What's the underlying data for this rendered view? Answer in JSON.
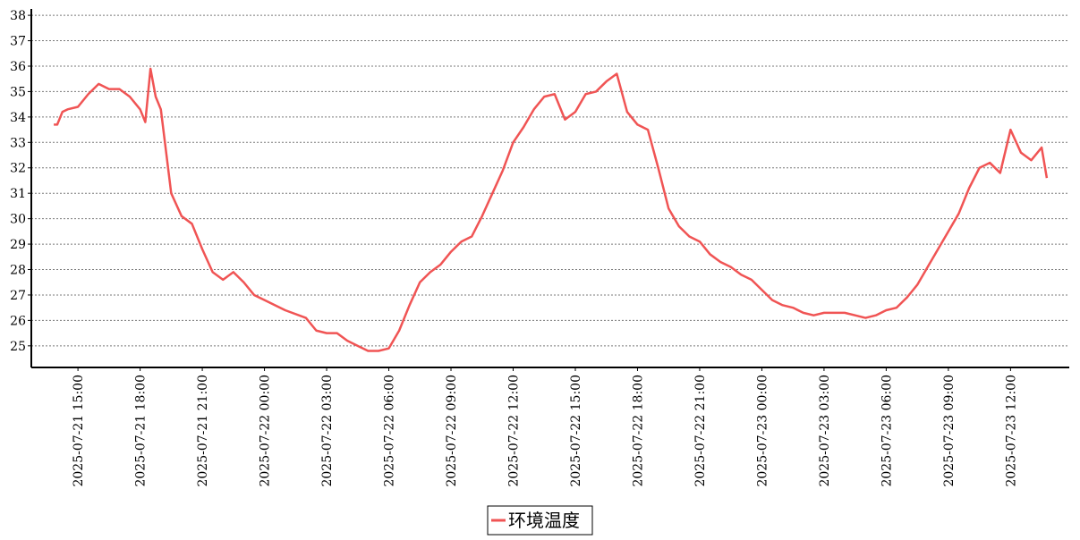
{
  "chart_data": {
    "type": "line",
    "x": [
      "2025-07-21 13:50",
      "2025-07-21 14:00",
      "2025-07-21 14:15",
      "2025-07-21 14:30",
      "2025-07-21 15:00",
      "2025-07-21 15:30",
      "2025-07-21 16:00",
      "2025-07-21 16:30",
      "2025-07-21 17:00",
      "2025-07-21 17:30",
      "2025-07-21 18:00",
      "2025-07-21 18:15",
      "2025-07-21 18:30",
      "2025-07-21 18:45",
      "2025-07-21 19:00",
      "2025-07-21 19:30",
      "2025-07-21 20:00",
      "2025-07-21 20:30",
      "2025-07-21 21:00",
      "2025-07-21 21:30",
      "2025-07-21 22:00",
      "2025-07-21 22:30",
      "2025-07-21 23:00",
      "2025-07-21 23:30",
      "2025-07-22 00:00",
      "2025-07-22 01:00",
      "2025-07-22 02:00",
      "2025-07-22 02:30",
      "2025-07-22 03:00",
      "2025-07-22 03:30",
      "2025-07-22 04:00",
      "2025-07-22 04:30",
      "2025-07-22 05:00",
      "2025-07-22 05:30",
      "2025-07-22 06:00",
      "2025-07-22 06:30",
      "2025-07-22 07:00",
      "2025-07-22 07:30",
      "2025-07-22 08:00",
      "2025-07-22 08:30",
      "2025-07-22 09:00",
      "2025-07-22 09:30",
      "2025-07-22 10:00",
      "2025-07-22 10:30",
      "2025-07-22 11:00",
      "2025-07-22 11:30",
      "2025-07-22 12:00",
      "2025-07-22 12:30",
      "2025-07-22 13:00",
      "2025-07-22 13:30",
      "2025-07-22 14:00",
      "2025-07-22 14:30",
      "2025-07-22 15:00",
      "2025-07-22 15:30",
      "2025-07-22 16:00",
      "2025-07-22 16:30",
      "2025-07-22 17:00",
      "2025-07-22 17:30",
      "2025-07-22 18:00",
      "2025-07-22 18:30",
      "2025-07-22 19:00",
      "2025-07-22 19:30",
      "2025-07-22 20:00",
      "2025-07-22 20:30",
      "2025-07-22 21:00",
      "2025-07-22 21:30",
      "2025-07-22 22:00",
      "2025-07-22 22:30",
      "2025-07-22 23:00",
      "2025-07-22 23:30",
      "2025-07-23 00:00",
      "2025-07-23 00:30",
      "2025-07-23 01:00",
      "2025-07-23 01:30",
      "2025-07-23 02:00",
      "2025-07-23 02:30",
      "2025-07-23 03:00",
      "2025-07-23 04:00",
      "2025-07-23 04:30",
      "2025-07-23 05:00",
      "2025-07-23 05:30",
      "2025-07-23 06:00",
      "2025-07-23 06:30",
      "2025-07-23 07:00",
      "2025-07-23 07:30",
      "2025-07-23 08:00",
      "2025-07-23 08:30",
      "2025-07-23 09:00",
      "2025-07-23 09:30",
      "2025-07-23 10:00",
      "2025-07-23 10:30",
      "2025-07-23 11:00",
      "2025-07-23 11:30",
      "2025-07-23 12:00",
      "2025-07-23 12:30",
      "2025-07-23 13:00",
      "2025-07-23 13:30",
      "2025-07-23 13:45"
    ],
    "series": [
      {
        "name": "环境温度",
        "color": "#f05454",
        "values": [
          33.7,
          33.7,
          34.2,
          34.3,
          34.4,
          34.9,
          35.3,
          35.1,
          35.1,
          34.8,
          34.3,
          33.8,
          35.9,
          34.8,
          34.3,
          31.0,
          30.1,
          29.8,
          28.8,
          27.9,
          27.6,
          27.9,
          27.5,
          27.0,
          26.8,
          26.4,
          26.1,
          25.6,
          25.5,
          25.5,
          25.2,
          25.0,
          24.8,
          24.8,
          24.9,
          25.6,
          26.6,
          27.5,
          27.9,
          28.2,
          28.7,
          29.1,
          29.3,
          30.1,
          31.0,
          31.9,
          33.0,
          33.6,
          34.3,
          34.8,
          34.9,
          33.9,
          34.2,
          34.9,
          35.0,
          35.4,
          35.7,
          34.2,
          33.7,
          33.5,
          32.0,
          30.4,
          29.7,
          29.3,
          29.1,
          28.6,
          28.3,
          28.1,
          27.8,
          27.6,
          27.2,
          26.8,
          26.6,
          26.5,
          26.3,
          26.2,
          26.3,
          26.3,
          26.2,
          26.1,
          26.2,
          26.4,
          26.5,
          26.9,
          27.4,
          28.1,
          28.8,
          29.5,
          30.2,
          31.2,
          32.0,
          32.2,
          31.8,
          33.5,
          32.6,
          32.3,
          32.8,
          31.6
        ]
      }
    ],
    "xlim": [
      "2025-07-21 12:45",
      "2025-07-23 14:50"
    ],
    "xticks": [
      "2025-07-21 15:00",
      "2025-07-21 18:00",
      "2025-07-21 21:00",
      "2025-07-22 00:00",
      "2025-07-22 03:00",
      "2025-07-22 06:00",
      "2025-07-22 09:00",
      "2025-07-22 12:00",
      "2025-07-22 15:00",
      "2025-07-22 18:00",
      "2025-07-22 21:00",
      "2025-07-23 00:00",
      "2025-07-23 03:00",
      "2025-07-23 06:00",
      "2025-07-23 09:00",
      "2025-07-23 12:00"
    ],
    "ylim": [
      24.15,
      38.25
    ],
    "yticks": [
      25,
      26,
      27,
      28,
      29,
      30,
      31,
      32,
      33,
      34,
      35,
      36,
      37,
      38
    ],
    "grid": true
  }
}
